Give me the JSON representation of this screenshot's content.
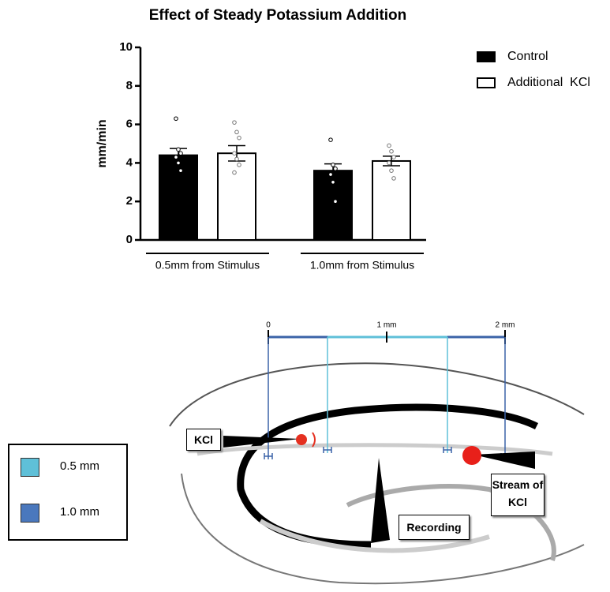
{
  "chart_data": {
    "type": "bar",
    "title": "Effect of Steady Potassium Addition",
    "y_label": "mm/min",
    "categories": [
      "0.5mm from Stimulus",
      "1.0mm from Stimulus"
    ],
    "series": [
      {
        "name": "Control",
        "color": "#000000",
        "values": [
          4.4,
          3.6
        ],
        "errors": [
          0.35,
          0.35
        ],
        "points": [
          [
            6.3,
            4.7,
            4.5,
            4.3,
            4.0,
            3.6
          ],
          [
            5.2,
            3.9,
            3.7,
            3.4,
            3.0,
            2.0
          ]
        ]
      },
      {
        "name": "Additional  KCl",
        "color": "#ffffff",
        "values": [
          4.5,
          4.1
        ],
        "errors": [
          0.4,
          0.25
        ],
        "points": [
          [
            6.1,
            5.6,
            5.3,
            4.5,
            4.2,
            3.9,
            3.5
          ],
          [
            4.9,
            4.6,
            4.3,
            4.0,
            3.6,
            3.2
          ]
        ]
      }
    ],
    "ylim": [
      0,
      10
    ],
    "yticks": [
      0,
      2,
      4,
      6,
      8,
      10
    ],
    "legend": "top-right"
  },
  "diagram": {
    "scale": [
      "0",
      "1 mm",
      "2 mm"
    ],
    "legend": [
      "0.5 mm",
      "1.0 mm"
    ],
    "labels": {
      "kcl": "KCl",
      "stream": "Stream of KCl",
      "recording": "Recording"
    }
  }
}
